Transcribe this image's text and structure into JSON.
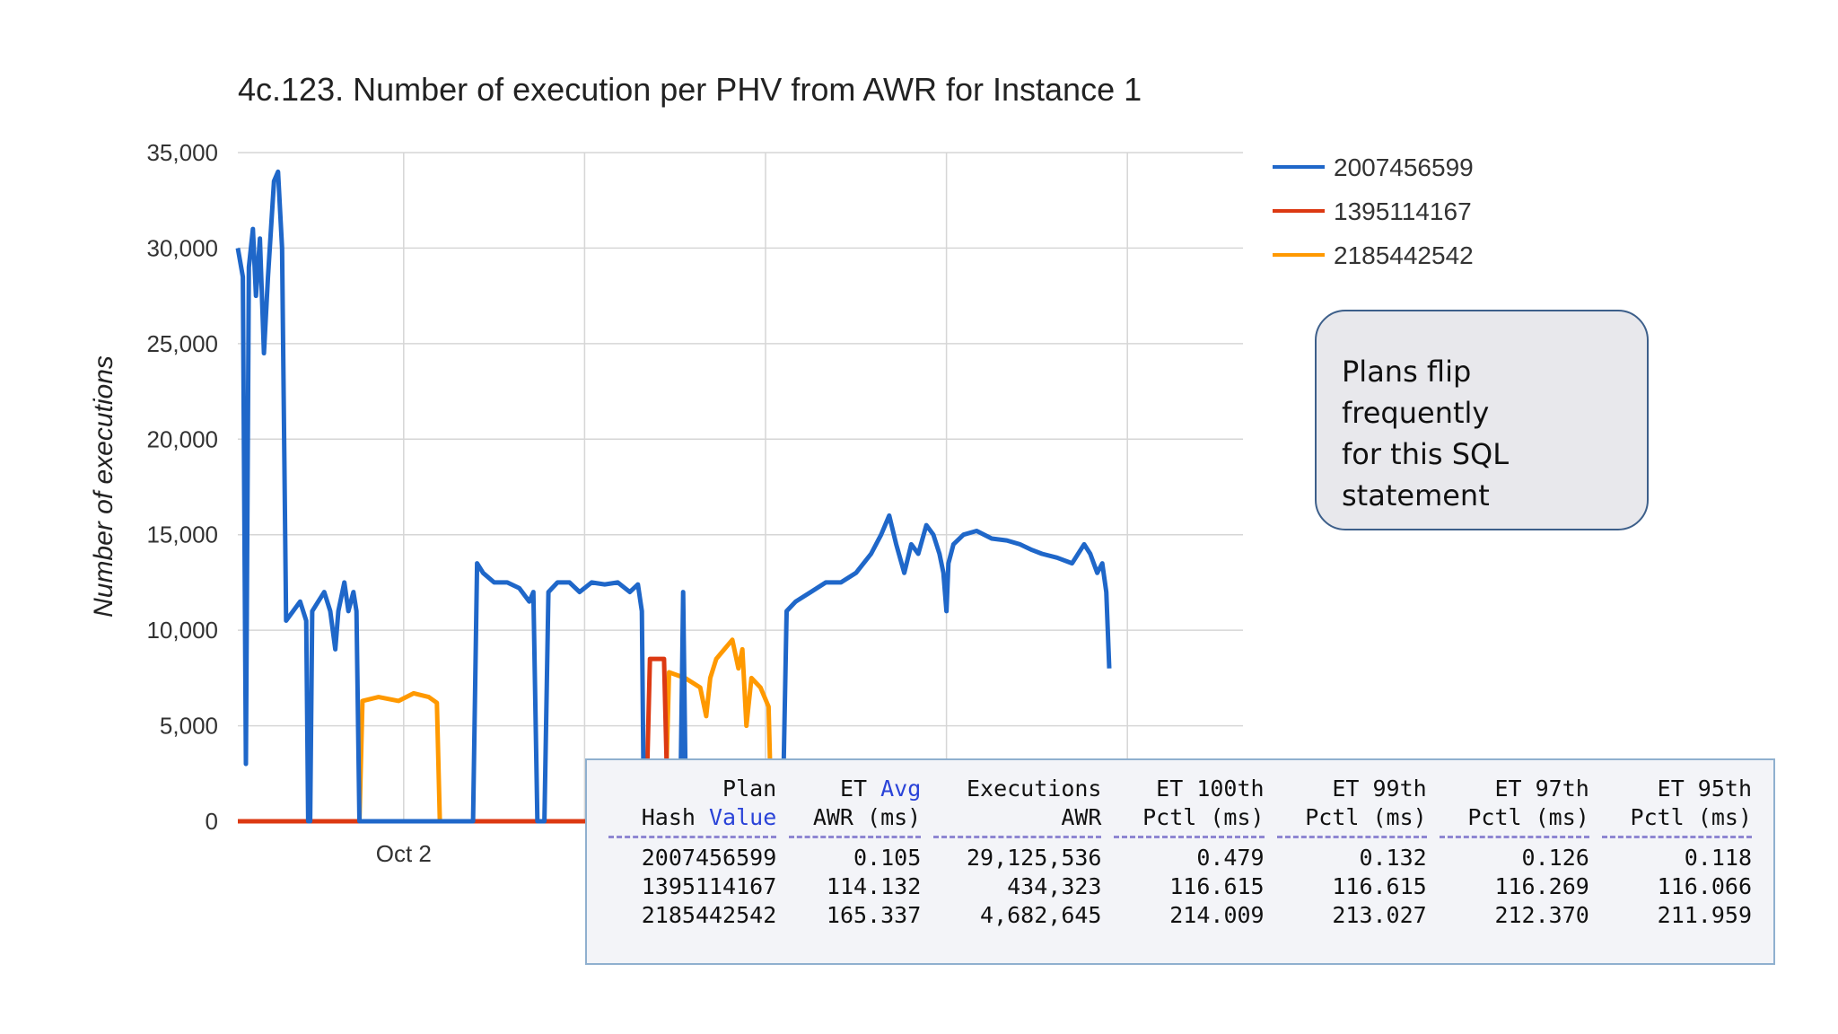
{
  "chart_data": {
    "type": "line",
    "title": "4c.123. Number of execution per PHV from AWR for Instance 1",
    "xlabel": "",
    "ylabel": "Number of executions",
    "ylim": [
      0,
      35000
    ],
    "yticks": [
      0,
      5000,
      10000,
      15000,
      20000,
      25000,
      30000,
      35000
    ],
    "ytick_labels": [
      "0",
      "5,000",
      "10,000",
      "15,000",
      "20,000",
      "25,000",
      "30,000",
      "35,000"
    ],
    "xtick_labels": [
      "Oct 2"
    ],
    "grid": true,
    "legend_position": "top-right",
    "x_index_max": 1000,
    "series": [
      {
        "name": "2007456599",
        "color": "#1f67c9",
        "points": [
          [
            0,
            30000
          ],
          [
            5,
            28500
          ],
          [
            8,
            3000
          ],
          [
            11,
            29000
          ],
          [
            15,
            31000
          ],
          [
            18,
            27500
          ],
          [
            22,
            30500
          ],
          [
            26,
            24500
          ],
          [
            30,
            28500
          ],
          [
            36,
            33500
          ],
          [
            40,
            34000
          ],
          [
            44,
            30000
          ],
          [
            48,
            10500
          ],
          [
            55,
            11000
          ],
          [
            62,
            11500
          ],
          [
            68,
            10500
          ],
          [
            70,
            0
          ],
          [
            72,
            0
          ],
          [
            74,
            11000
          ],
          [
            80,
            11500
          ],
          [
            86,
            12000
          ],
          [
            92,
            11000
          ],
          [
            97,
            9000
          ],
          [
            100,
            11000
          ],
          [
            106,
            12500
          ],
          [
            110,
            11000
          ],
          [
            115,
            12000
          ],
          [
            118,
            11000
          ],
          [
            121,
            0
          ],
          [
            234,
            0
          ],
          [
            238,
            13500
          ],
          [
            244,
            13000
          ],
          [
            255,
            12500
          ],
          [
            268,
            12500
          ],
          [
            280,
            12200
          ],
          [
            290,
            11500
          ],
          [
            294,
            12000
          ],
          [
            298,
            0
          ],
          [
            305,
            0
          ],
          [
            309,
            12000
          ],
          [
            318,
            12500
          ],
          [
            330,
            12500
          ],
          [
            340,
            12000
          ],
          [
            352,
            12500
          ],
          [
            365,
            12400
          ],
          [
            378,
            12500
          ],
          [
            390,
            12000
          ],
          [
            398,
            12400
          ],
          [
            402,
            11000
          ],
          [
            404,
            0
          ],
          [
            440,
            0
          ],
          [
            443,
            12000
          ],
          [
            446,
            0
          ],
          [
            542,
            0
          ],
          [
            546,
            11000
          ],
          [
            555,
            11500
          ],
          [
            570,
            12000
          ],
          [
            585,
            12500
          ],
          [
            600,
            12500
          ],
          [
            615,
            13000
          ],
          [
            630,
            14000
          ],
          [
            640,
            15000
          ],
          [
            648,
            16000
          ],
          [
            655,
            14500
          ],
          [
            663,
            13000
          ],
          [
            670,
            14500
          ],
          [
            677,
            14000
          ],
          [
            685,
            15500
          ],
          [
            692,
            15000
          ],
          [
            698,
            14000
          ],
          [
            702,
            13000
          ],
          [
            705,
            11000
          ],
          [
            707,
            13500
          ],
          [
            712,
            14500
          ],
          [
            722,
            15000
          ],
          [
            735,
            15200
          ],
          [
            750,
            14800
          ],
          [
            765,
            14700
          ],
          [
            778,
            14500
          ],
          [
            790,
            14200
          ],
          [
            800,
            14000
          ],
          [
            815,
            13800
          ],
          [
            830,
            13500
          ],
          [
            842,
            14500
          ],
          [
            848,
            14000
          ],
          [
            855,
            13000
          ],
          [
            860,
            13500
          ],
          [
            864,
            12000
          ],
          [
            867,
            8000
          ]
        ]
      },
      {
        "name": "1395114167",
        "color": "#dc3912",
        "points": [
          [
            0,
            0
          ],
          [
            406,
            0
          ],
          [
            410,
            8500
          ],
          [
            424,
            8500
          ],
          [
            428,
            0
          ],
          [
            1000,
            0
          ]
        ]
      },
      {
        "name": "2185442542",
        "color": "#ff9900",
        "points": [
          [
            0,
            0
          ],
          [
            121,
            0
          ],
          [
            124,
            6300
          ],
          [
            140,
            6500
          ],
          [
            160,
            6300
          ],
          [
            175,
            6700
          ],
          [
            190,
            6500
          ],
          [
            198,
            6200
          ],
          [
            201,
            0
          ],
          [
            425,
            0
          ],
          [
            429,
            7800
          ],
          [
            445,
            7500
          ],
          [
            460,
            7000
          ],
          [
            466,
            5500
          ],
          [
            470,
            7500
          ],
          [
            476,
            8500
          ],
          [
            484,
            9000
          ],
          [
            492,
            9500
          ],
          [
            498,
            8000
          ],
          [
            502,
            9000
          ],
          [
            506,
            5000
          ],
          [
            511,
            7500
          ],
          [
            520,
            7000
          ],
          [
            528,
            6000
          ],
          [
            531,
            0
          ],
          [
            1000,
            0
          ]
        ]
      }
    ]
  },
  "callout": {
    "lines": [
      "Plans flip frequently",
      "for this SQL",
      "statement"
    ]
  },
  "stats_table": {
    "headers": [
      {
        "line1": "Plan",
        "line2a": "Hash ",
        "line2b": "Value",
        "line1b": ""
      },
      {
        "line1": "ET ",
        "line1b": "Avg",
        "line2a": "AWR (ms)",
        "line2b": ""
      },
      {
        "line1": "Executions",
        "line1b": "",
        "line2a": "AWR",
        "line2b": ""
      },
      {
        "line1": "ET 100th",
        "line1b": "",
        "line2a": "Pctl (ms)",
        "line2b": ""
      },
      {
        "line1": "ET 99th",
        "line1b": "",
        "line2a": "Pctl (ms)",
        "line2b": ""
      },
      {
        "line1": "ET 97th",
        "line1b": "",
        "line2a": "Pctl (ms)",
        "line2b": ""
      },
      {
        "line1": "ET 95th",
        "line1b": "",
        "line2a": "Pctl (ms)",
        "line2b": ""
      }
    ],
    "rows": [
      [
        "2007456599",
        "0.105",
        "29,125,536",
        "0.479",
        "0.132",
        "0.126",
        "0.118"
      ],
      [
        "1395114167",
        "114.132",
        "434,323",
        "116.615",
        "116.615",
        "116.269",
        "116.066"
      ],
      [
        "2185442542",
        "165.337",
        "4,682,645",
        "214.009",
        "213.027",
        "212.370",
        "211.959"
      ]
    ]
  }
}
